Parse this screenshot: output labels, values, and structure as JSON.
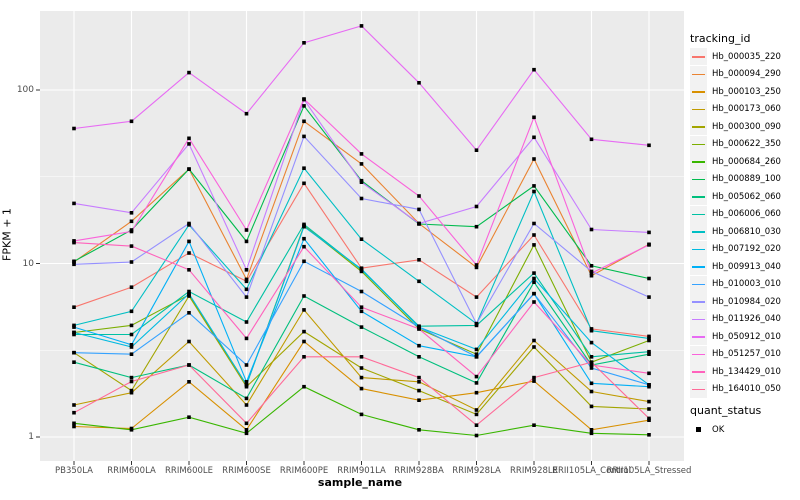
{
  "figure": {
    "panel_bg": "#EBEBEB",
    "grid_color": "#FFFFFF",
    "tick_label_color": "#4D4D4D",
    "point_color": "#000000"
  },
  "y_axis": {
    "title": "FPKM + 1",
    "ticks": [
      "1",
      "10",
      "100"
    ]
  },
  "x_axis": {
    "title": "sample_name"
  },
  "legend": {
    "tracking_title": "tracking_id",
    "quant_title": "quant_status",
    "quant_ok_label": "OK"
  },
  "chart_data": {
    "type": "line",
    "title": "",
    "xlabel": "sample_name",
    "ylabel": "FPKM + 1",
    "y_scale": "log10",
    "ylim": [
      1,
      285
    ],
    "grid": true,
    "legend_position": "right",
    "point_marker": "black-square",
    "quant_status_all": "OK",
    "categories": [
      "PB350LA",
      "RRIM600LA",
      "RRIM600LE",
      "RRIM600SE",
      "RRIM600PE",
      "RRIM901LA",
      "RRIM928BA",
      "RRIM928LA",
      "RRIM928LE",
      "RRII105LA_Control",
      "RRII105LA_Stressed"
    ],
    "series": [
      {
        "name": "Hb_000035_220",
        "color": "#F8766D",
        "values": [
          5.6,
          7.3,
          11.5,
          7.9,
          29,
          9.4,
          10.5,
          6.4,
          14.6,
          4.2,
          3.8
        ]
      },
      {
        "name": "Hb_000094_290",
        "color": "#EA8331",
        "values": [
          10.2,
          17.5,
          35,
          8.1,
          66,
          37.5,
          17,
          9.5,
          40,
          8.5,
          12.9
        ]
      },
      {
        "name": "Hb_000103_250",
        "color": "#D89000",
        "values": [
          1.15,
          1.12,
          2.08,
          1.1,
          3.55,
          1.9,
          1.63,
          1.8,
          2.1,
          1.1,
          1.25
        ]
      },
      {
        "name": "Hb_000173_060",
        "color": "#C09B00",
        "values": [
          1.53,
          1.8,
          3.55,
          1.53,
          5.4,
          2.2,
          2.08,
          1.43,
          3.6,
          1.83,
          1.6
        ]
      },
      {
        "name": "Hb_000300_090",
        "color": "#A3A500",
        "values": [
          3.06,
          1.85,
          6.5,
          1.95,
          4.05,
          2.5,
          1.85,
          1.35,
          3.3,
          1.5,
          1.45
        ]
      },
      {
        "name": "Hb_000622_350",
        "color": "#7CAE00",
        "values": [
          4.0,
          4.4,
          6.6,
          2.0,
          16.5,
          9.0,
          4.2,
          3.0,
          12.8,
          2.7,
          3.6
        ]
      },
      {
        "name": "Hb_000684_260",
        "color": "#39B600",
        "values": [
          1.2,
          1.1,
          1.3,
          1.05,
          1.95,
          1.35,
          1.1,
          1.02,
          1.17,
          1.05,
          1.03
        ]
      },
      {
        "name": "Hb_000889_100",
        "color": "#00BB4E",
        "values": [
          10.3,
          15.6,
          35,
          13.4,
          81,
          30,
          16.9,
          16.3,
          28,
          9.7,
          8.2
        ]
      },
      {
        "name": "Hb_005062_060",
        "color": "#00BF7D",
        "values": [
          2.7,
          2.2,
          2.6,
          1.67,
          6.5,
          4.3,
          2.9,
          2.05,
          7.8,
          2.6,
          3.0
        ]
      },
      {
        "name": "Hb_006006_060",
        "color": "#00C1A3",
        "values": [
          3.9,
          3.9,
          6.9,
          4.6,
          16.8,
          9.2,
          4.35,
          4.4,
          8.8,
          2.9,
          3.1
        ]
      },
      {
        "name": "Hb_006810_030",
        "color": "#00BFC4",
        "values": [
          4.4,
          5.3,
          16.7,
          7.1,
          35.4,
          13.8,
          7.9,
          4.5,
          26,
          4.1,
          3.7
        ]
      },
      {
        "name": "Hb_007192_020",
        "color": "#00BAE0",
        "values": [
          4.0,
          3.3,
          6.7,
          2.0,
          16.3,
          9.3,
          4.3,
          3.2,
          8.2,
          3.5,
          2.0
        ]
      },
      {
        "name": "Hb_009913_040",
        "color": "#00B0F6",
        "values": [
          4.3,
          3.4,
          13.4,
          2.08,
          13.9,
          5.3,
          3.36,
          2.9,
          6.7,
          2.04,
          1.95
        ]
      },
      {
        "name": "Hb_010003_010",
        "color": "#35A2FF",
        "values": [
          3.06,
          3.0,
          5.2,
          2.6,
          10.3,
          6.9,
          4.3,
          2.9,
          6.7,
          2.5,
          2.0
        ]
      },
      {
        "name": "Hb_010984_020",
        "color": "#9590FF",
        "values": [
          9.9,
          10.2,
          17.0,
          6.4,
          54,
          23.7,
          20.5,
          4.5,
          17.0,
          9.0,
          6.4
        ]
      },
      {
        "name": "Hb_011926_040",
        "color": "#C77CFF",
        "values": [
          22.2,
          19.6,
          48.9,
          9.2,
          88,
          29.4,
          17,
          21.3,
          53.4,
          15.7,
          15.1
        ]
      },
      {
        "name": "Hb_050912_010",
        "color": "#E76BF3",
        "values": [
          60,
          66,
          126,
          73,
          187,
          234,
          110,
          45,
          131,
          52,
          48
        ]
      },
      {
        "name": "Hb_051257_010",
        "color": "#FA62DB",
        "values": [
          13.5,
          15.3,
          52.7,
          15.6,
          88.7,
          42.8,
          24.5,
          9.8,
          69.6,
          8.8,
          12.8
        ]
      },
      {
        "name": "Hb_134429_010",
        "color": "#FF62BC",
        "values": [
          13.2,
          12.6,
          9.2,
          3.7,
          12.5,
          5.6,
          4.2,
          2.23,
          6.0,
          2.6,
          2.33
        ]
      },
      {
        "name": "Hb_164010_050",
        "color": "#FF6A98",
        "values": [
          1.38,
          2.09,
          2.6,
          1.2,
          2.9,
          2.9,
          2.2,
          1.17,
          2.2,
          2.7,
          1.28
        ]
      }
    ]
  }
}
